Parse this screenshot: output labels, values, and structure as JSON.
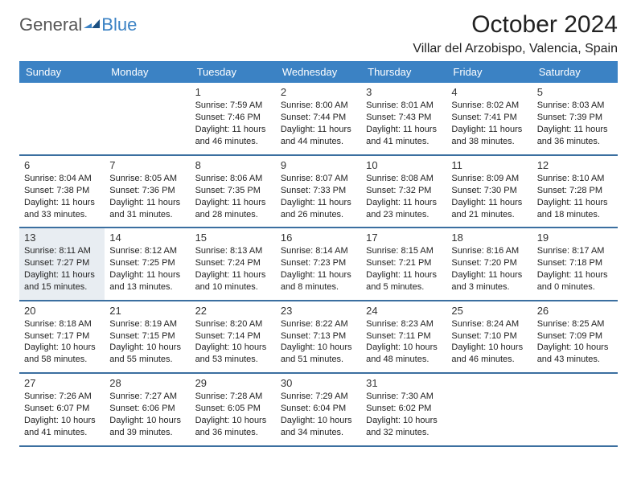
{
  "brand": {
    "part1": "General",
    "part2": "Blue"
  },
  "title": "October 2024",
  "location": "Villar del Arzobispo, Valencia, Spain",
  "colors": {
    "header_bg": "#3b82c4",
    "header_text": "#ffffff",
    "row_border": "#3b6fa0",
    "highlight_bg": "#e8edf2",
    "brand_gray": "#555555",
    "brand_blue": "#3b82c4"
  },
  "weekdays": [
    "Sunday",
    "Monday",
    "Tuesday",
    "Wednesday",
    "Thursday",
    "Friday",
    "Saturday"
  ],
  "days": [
    {
      "n": 1,
      "sunrise": "7:59 AM",
      "sunset": "7:46 PM",
      "daylight": "11 hours and 46 minutes."
    },
    {
      "n": 2,
      "sunrise": "8:00 AM",
      "sunset": "7:44 PM",
      "daylight": "11 hours and 44 minutes."
    },
    {
      "n": 3,
      "sunrise": "8:01 AM",
      "sunset": "7:43 PM",
      "daylight": "11 hours and 41 minutes."
    },
    {
      "n": 4,
      "sunrise": "8:02 AM",
      "sunset": "7:41 PM",
      "daylight": "11 hours and 38 minutes."
    },
    {
      "n": 5,
      "sunrise": "8:03 AM",
      "sunset": "7:39 PM",
      "daylight": "11 hours and 36 minutes."
    },
    {
      "n": 6,
      "sunrise": "8:04 AM",
      "sunset": "7:38 PM",
      "daylight": "11 hours and 33 minutes."
    },
    {
      "n": 7,
      "sunrise": "8:05 AM",
      "sunset": "7:36 PM",
      "daylight": "11 hours and 31 minutes."
    },
    {
      "n": 8,
      "sunrise": "8:06 AM",
      "sunset": "7:35 PM",
      "daylight": "11 hours and 28 minutes."
    },
    {
      "n": 9,
      "sunrise": "8:07 AM",
      "sunset": "7:33 PM",
      "daylight": "11 hours and 26 minutes."
    },
    {
      "n": 10,
      "sunrise": "8:08 AM",
      "sunset": "7:32 PM",
      "daylight": "11 hours and 23 minutes."
    },
    {
      "n": 11,
      "sunrise": "8:09 AM",
      "sunset": "7:30 PM",
      "daylight": "11 hours and 21 minutes."
    },
    {
      "n": 12,
      "sunrise": "8:10 AM",
      "sunset": "7:28 PM",
      "daylight": "11 hours and 18 minutes."
    },
    {
      "n": 13,
      "sunrise": "8:11 AM",
      "sunset": "7:27 PM",
      "daylight": "11 hours and 15 minutes.",
      "highlight": true
    },
    {
      "n": 14,
      "sunrise": "8:12 AM",
      "sunset": "7:25 PM",
      "daylight": "11 hours and 13 minutes."
    },
    {
      "n": 15,
      "sunrise": "8:13 AM",
      "sunset": "7:24 PM",
      "daylight": "11 hours and 10 minutes."
    },
    {
      "n": 16,
      "sunrise": "8:14 AM",
      "sunset": "7:23 PM",
      "daylight": "11 hours and 8 minutes."
    },
    {
      "n": 17,
      "sunrise": "8:15 AM",
      "sunset": "7:21 PM",
      "daylight": "11 hours and 5 minutes."
    },
    {
      "n": 18,
      "sunrise": "8:16 AM",
      "sunset": "7:20 PM",
      "daylight": "11 hours and 3 minutes."
    },
    {
      "n": 19,
      "sunrise": "8:17 AM",
      "sunset": "7:18 PM",
      "daylight": "11 hours and 0 minutes."
    },
    {
      "n": 20,
      "sunrise": "8:18 AM",
      "sunset": "7:17 PM",
      "daylight": "10 hours and 58 minutes."
    },
    {
      "n": 21,
      "sunrise": "8:19 AM",
      "sunset": "7:15 PM",
      "daylight": "10 hours and 55 minutes."
    },
    {
      "n": 22,
      "sunrise": "8:20 AM",
      "sunset": "7:14 PM",
      "daylight": "10 hours and 53 minutes."
    },
    {
      "n": 23,
      "sunrise": "8:22 AM",
      "sunset": "7:13 PM",
      "daylight": "10 hours and 51 minutes."
    },
    {
      "n": 24,
      "sunrise": "8:23 AM",
      "sunset": "7:11 PM",
      "daylight": "10 hours and 48 minutes."
    },
    {
      "n": 25,
      "sunrise": "8:24 AM",
      "sunset": "7:10 PM",
      "daylight": "10 hours and 46 minutes."
    },
    {
      "n": 26,
      "sunrise": "8:25 AM",
      "sunset": "7:09 PM",
      "daylight": "10 hours and 43 minutes."
    },
    {
      "n": 27,
      "sunrise": "7:26 AM",
      "sunset": "6:07 PM",
      "daylight": "10 hours and 41 minutes."
    },
    {
      "n": 28,
      "sunrise": "7:27 AM",
      "sunset": "6:06 PM",
      "daylight": "10 hours and 39 minutes."
    },
    {
      "n": 29,
      "sunrise": "7:28 AM",
      "sunset": "6:05 PM",
      "daylight": "10 hours and 36 minutes."
    },
    {
      "n": 30,
      "sunrise": "7:29 AM",
      "sunset": "6:04 PM",
      "daylight": "10 hours and 34 minutes."
    },
    {
      "n": 31,
      "sunrise": "7:30 AM",
      "sunset": "6:02 PM",
      "daylight": "10 hours and 32 minutes."
    }
  ],
  "labels": {
    "sunrise": "Sunrise:",
    "sunset": "Sunset:",
    "daylight": "Daylight:"
  },
  "first_weekday_index": 2
}
